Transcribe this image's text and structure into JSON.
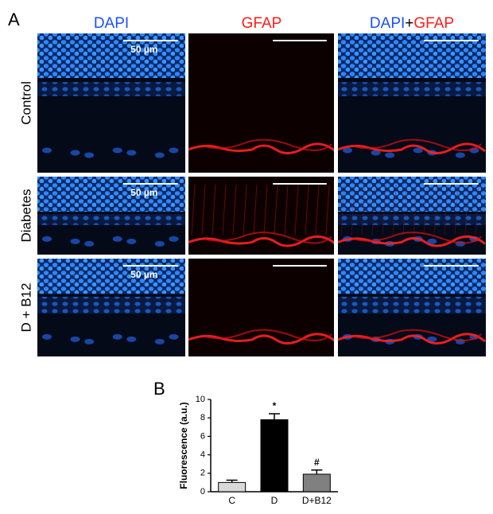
{
  "panel_labels": [
    "A",
    "B"
  ],
  "panel_a": {
    "column_headers": [
      "DAPI",
      "GFAP",
      [
        "DAPI",
        "+",
        "GFAP"
      ]
    ],
    "row_labels": [
      "Control",
      "Diabetes",
      "D + B12"
    ],
    "scale_bar_label": "50 µm"
  },
  "chart_data": {
    "type": "bar",
    "y_label": "Fluorescence (a.u.)",
    "categories": [
      "C",
      "D",
      "D+B12"
    ],
    "values": [
      1.0,
      7.8,
      1.9
    ],
    "errors": [
      0.25,
      0.65,
      0.45
    ],
    "colors": [
      "#d9d9d9",
      "#000000",
      "#808080"
    ],
    "annotations": {
      "D": "*",
      "D+B12": "#"
    },
    "ylim": [
      0,
      10
    ],
    "yticks": [
      0,
      2,
      4,
      6,
      8,
      10
    ]
  }
}
